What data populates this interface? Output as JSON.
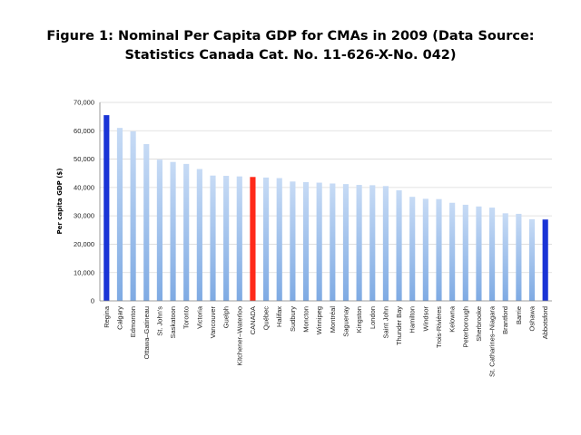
{
  "chart_data": {
    "type": "bar",
    "title_line1": "Figure 1: Nominal Per Capita GDP for CMAs in 2009 (Data Source:",
    "title_line2": "Statistics Canada Cat. No. 11-626-X-No. 042)",
    "ylabel": "Per capita GDP ($)",
    "xlabel": "",
    "ylim": [
      0,
      70000
    ],
    "yticks": [
      "0",
      "10,000",
      "20,000",
      "30,000",
      "40,000",
      "50,000",
      "60,000",
      "70,000"
    ],
    "grid": true,
    "categories": [
      "Regina",
      "Calgary",
      "Edmonton",
      "Ottawa–Gatineau",
      "St. John's",
      "Saskatoon",
      "Toronto",
      "Victoria",
      "Vancouver",
      "Guelph",
      "Kitchener–Waterloo",
      "CANADA",
      "Québec",
      "Halifax",
      "Sudbury",
      "Moncton",
      "Winnipeg",
      "Montréal",
      "Saguenay",
      "Kingston",
      "London",
      "Saint John",
      "Thunder Bay",
      "Hamilton",
      "Windsor",
      "Trois-Rivières",
      "Kelowna",
      "Peterborough",
      "Sherbrooke",
      "St. Catharines–Niagara",
      "Brantford",
      "Barrie",
      "Oshawa",
      "Abbotsford"
    ],
    "values": [
      65500,
      61000,
      59800,
      55300,
      49800,
      49000,
      48300,
      46500,
      44200,
      44100,
      43900,
      43700,
      43500,
      43300,
      42100,
      41900,
      41700,
      41400,
      41200,
      40900,
      40800,
      40500,
      39000,
      36700,
      36000,
      35900,
      34600,
      33900,
      33300,
      32900,
      30900,
      30700,
      28800,
      28700
    ],
    "highlight": {
      "Regina": "#1a34d6",
      "CANADA": "#ff2a1a",
      "Abbotsford": "#1a34d6"
    },
    "colors": {
      "bar_top": "#c7dbf5",
      "bar_bottom": "#7eaae3",
      "grid": "#d9d9d9",
      "axis": "#7f7f7f"
    }
  }
}
